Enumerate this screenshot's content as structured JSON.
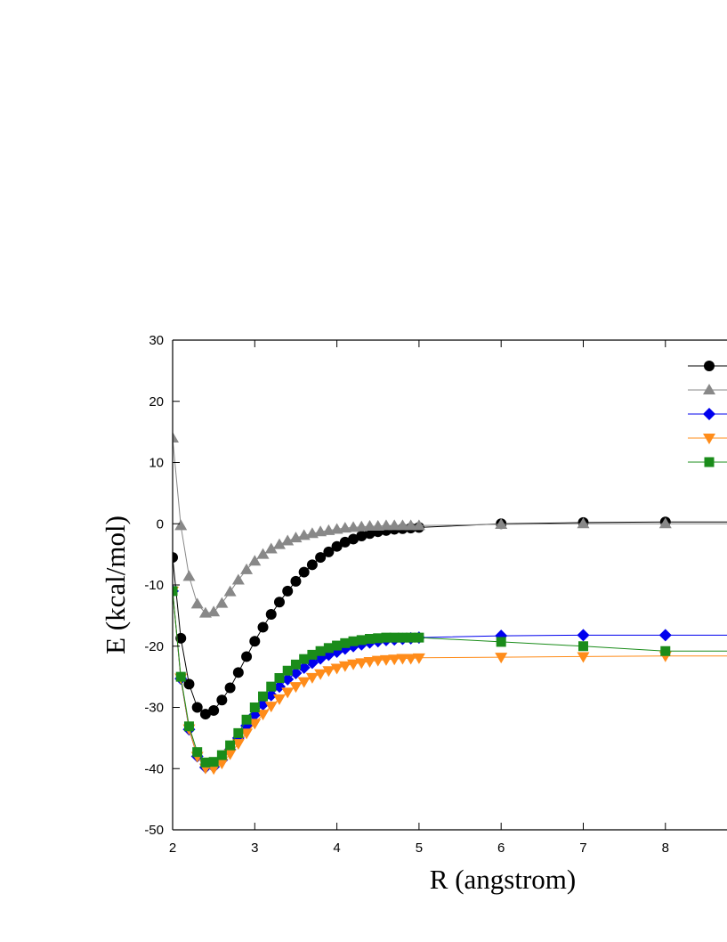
{
  "chart_data": {
    "type": "scatter",
    "title": "",
    "xlabel": "R (angstrom)",
    "ylabel": "E (kcal/mol)",
    "xlim": [
      2,
      8.75
    ],
    "ylim": [
      -50,
      30
    ],
    "xticks": [
      2,
      3,
      4,
      5,
      6,
      7,
      8
    ],
    "yticks": [
      30,
      20,
      10,
      0,
      -10,
      -20,
      -30,
      -40,
      -50
    ],
    "legend_position": "top-right",
    "series": [
      {
        "color": "#000000",
        "marker": "circle",
        "x": [
          2.0,
          2.1,
          2.2,
          2.3,
          2.4,
          2.5,
          2.6,
          2.7,
          2.8,
          2.9,
          3.0,
          3.1,
          3.2,
          3.3,
          3.4,
          3.5,
          3.6,
          3.7,
          3.8,
          3.9,
          4.0,
          4.1,
          4.2,
          4.3,
          4.4,
          4.5,
          4.6,
          4.7,
          4.8,
          4.9,
          5.0,
          6,
          7,
          8
        ],
        "y": [
          -5.5,
          -18.7,
          -26.2,
          -30.0,
          -31.1,
          -30.5,
          -28.8,
          -26.8,
          -24.3,
          -21.7,
          -19.2,
          -16.9,
          -14.8,
          -12.8,
          -11.0,
          -9.4,
          -7.9,
          -6.7,
          -5.5,
          -4.6,
          -3.7,
          -3.0,
          -2.5,
          -2.0,
          -1.6,
          -1.3,
          -1.1,
          -0.9,
          -0.8,
          -0.7,
          -0.6,
          0.0,
          0.2,
          0.3
        ]
      },
      {
        "color": "#888888",
        "marker": "triangle-up",
        "x": [
          2.0,
          2.1,
          2.2,
          2.3,
          2.4,
          2.5,
          2.6,
          2.7,
          2.8,
          2.9,
          3.0,
          3.1,
          3.2,
          3.3,
          3.4,
          3.5,
          3.6,
          3.7,
          3.8,
          3.9,
          4.0,
          4.1,
          4.2,
          4.3,
          4.4,
          4.5,
          4.6,
          4.7,
          4.8,
          4.9,
          5.0,
          6,
          7,
          8
        ],
        "y": [
          14.0,
          -0.3,
          -8.6,
          -13.1,
          -14.6,
          -14.4,
          -13.0,
          -11.1,
          -9.2,
          -7.5,
          -6.1,
          -5.0,
          -4.1,
          -3.4,
          -2.8,
          -2.3,
          -1.9,
          -1.6,
          -1.3,
          -1.1,
          -0.9,
          -0.7,
          -0.6,
          -0.5,
          -0.4,
          -0.4,
          -0.3,
          -0.3,
          -0.3,
          -0.3,
          -0.3,
          -0.1,
          0.0,
          0.0
        ]
      },
      {
        "color": "#0000ee",
        "marker": "diamond",
        "x": [
          2.0,
          2.1,
          2.2,
          2.3,
          2.4,
          2.5,
          2.6,
          2.7,
          2.8,
          2.9,
          3.0,
          3.1,
          3.2,
          3.3,
          3.4,
          3.5,
          3.6,
          3.7,
          3.8,
          3.9,
          4.0,
          4.1,
          4.2,
          4.3,
          4.4,
          4.5,
          4.6,
          4.7,
          4.8,
          4.9,
          5.0,
          6,
          7,
          8
        ],
        "y": [
          -11.0,
          -25.3,
          -33.6,
          -38.0,
          -39.8,
          -39.7,
          -38.6,
          -36.9,
          -35.0,
          -33.0,
          -31.2,
          -29.5,
          -28.0,
          -26.6,
          -25.4,
          -24.4,
          -23.5,
          -22.7,
          -22.0,
          -21.4,
          -20.9,
          -20.4,
          -20.0,
          -19.7,
          -19.4,
          -19.2,
          -19.0,
          -18.9,
          -18.8,
          -18.7,
          -18.6,
          -18.3,
          -18.2,
          -18.2
        ]
      },
      {
        "color": "#ff8c1a",
        "marker": "triangle-down",
        "x": [
          2.0,
          2.1,
          2.2,
          2.3,
          2.4,
          2.5,
          2.6,
          2.7,
          2.8,
          2.9,
          3.0,
          3.1,
          3.2,
          3.3,
          3.4,
          3.5,
          3.6,
          3.7,
          3.8,
          3.9,
          4.0,
          4.1,
          4.2,
          4.3,
          4.4,
          4.5,
          4.6,
          4.7,
          4.8,
          4.9,
          5.0,
          6,
          7,
          8
        ],
        "y": [
          -11.0,
          -25.2,
          -33.5,
          -38.0,
          -39.9,
          -40.0,
          -39.1,
          -37.6,
          -35.9,
          -34.2,
          -32.6,
          -31.1,
          -29.8,
          -28.6,
          -27.5,
          -26.6,
          -25.8,
          -25.1,
          -24.5,
          -24.0,
          -23.6,
          -23.2,
          -22.9,
          -22.7,
          -22.5,
          -22.3,
          -22.2,
          -22.1,
          -22.0,
          -22.0,
          -21.9,
          -21.8,
          -21.7,
          -21.6
        ]
      },
      {
        "color": "#1a8c1a",
        "marker": "square",
        "x": [
          2.0,
          2.1,
          2.2,
          2.3,
          2.4,
          2.5,
          2.6,
          2.7,
          2.8,
          2.9,
          3.0,
          3.1,
          3.2,
          3.3,
          3.4,
          3.5,
          3.6,
          3.7,
          3.8,
          3.9,
          4.0,
          4.1,
          4.2,
          4.3,
          4.4,
          4.5,
          4.6,
          4.7,
          4.8,
          4.9,
          5.0,
          6,
          7,
          8
        ],
        "y": [
          -11.0,
          -25.0,
          -33.1,
          -37.3,
          -39.0,
          -38.9,
          -37.8,
          -36.2,
          -34.2,
          -32.0,
          -30.0,
          -28.2,
          -26.6,
          -25.2,
          -24.0,
          -23.0,
          -22.1,
          -21.4,
          -20.8,
          -20.3,
          -19.9,
          -19.5,
          -19.2,
          -19.0,
          -18.8,
          -18.7,
          -18.6,
          -18.6,
          -18.6,
          -18.6,
          -18.6,
          -19.3,
          -20.0,
          -20.8
        ]
      }
    ]
  }
}
